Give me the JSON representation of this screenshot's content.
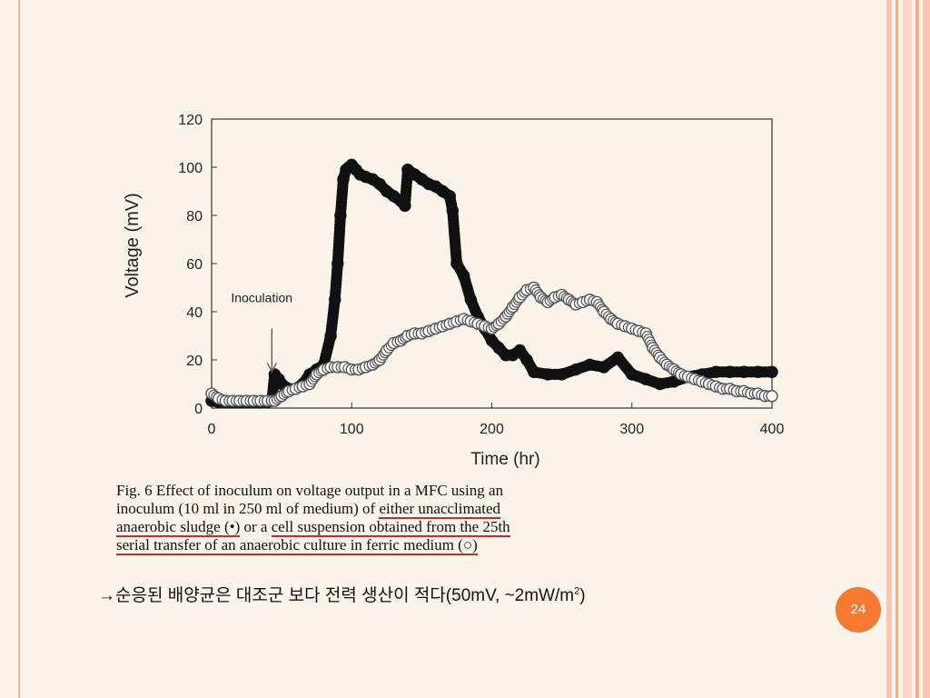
{
  "slide": {
    "page_number": "24",
    "note": "→순응된 배양균은 대조군 보다 전력 생산이 적다(50mV, ~2mW/m",
    "note_sup": "2",
    "note_tail": ")",
    "colors": {
      "background": "#fbf4ea",
      "accent": "#f47a32",
      "underline": "#c0302a",
      "rule": "#f3b8a0"
    }
  },
  "caption": {
    "line1": "Fig. 6  Effect of inoculum on voltage output in a MFC using an",
    "line2a": "inoculum (10 ml in 250 ml of medium) of ",
    "line2b": "either unacclimated",
    "line3a": "anaerobic sludge (•)",
    "line3b": " or a ",
    "line3c": "cell suspension obtained from the 25th",
    "line4": "serial transfer of an anaerobic culture in ferric medium (○)"
  },
  "chart_data": {
    "type": "scatter",
    "xlabel": "Time (hr)",
    "ylabel": "Voltage (mV)",
    "xlim": [
      0,
      400
    ],
    "ylim": [
      0,
      120
    ],
    "xticks": [
      0,
      100,
      200,
      300,
      400
    ],
    "yticks": [
      0,
      20,
      40,
      60,
      80,
      100,
      120
    ],
    "grid": false,
    "annotations": [
      {
        "text": "Inoculation",
        "x": 43,
        "y": 15
      }
    ],
    "series": [
      {
        "marker": "filled",
        "x": [
          0,
          5,
          10,
          15,
          20,
          25,
          30,
          35,
          40,
          43,
          45,
          48,
          50,
          55,
          60,
          65,
          70,
          75,
          80,
          85,
          88,
          90,
          92,
          94,
          96,
          98,
          100,
          103,
          106,
          110,
          115,
          120,
          125,
          130,
          135,
          138,
          140,
          145,
          150,
          155,
          160,
          165,
          170,
          172,
          175,
          180,
          185,
          190,
          195,
          200,
          205,
          210,
          215,
          220,
          225,
          230,
          240,
          250,
          260,
          270,
          280,
          290,
          300,
          310,
          320,
          330,
          340,
          350,
          360,
          370,
          380,
          390,
          400
        ],
        "y": [
          3,
          2.5,
          2.5,
          2.5,
          2.5,
          2.5,
          2.5,
          2.5,
          2.5,
          3,
          14,
          12,
          10,
          8,
          8,
          10,
          14,
          16,
          18,
          30,
          45,
          60,
          80,
          95,
          99,
          100,
          101,
          99,
          97,
          96,
          95,
          93,
          90,
          88,
          86,
          84,
          99,
          97,
          95,
          93,
          92,
          90,
          88,
          82,
          60,
          55,
          45,
          38,
          33,
          28,
          25,
          22,
          22,
          24,
          20,
          15,
          14,
          14,
          16,
          18,
          17,
          21,
          14,
          12,
          10,
          11,
          13,
          14,
          15,
          15,
          15,
          15,
          15
        ]
      },
      {
        "marker": "open",
        "x": [
          0,
          5,
          10,
          15,
          20,
          25,
          30,
          35,
          40,
          43,
          45,
          50,
          55,
          60,
          65,
          70,
          75,
          80,
          85,
          90,
          95,
          100,
          105,
          110,
          115,
          120,
          125,
          130,
          135,
          140,
          145,
          150,
          155,
          160,
          165,
          170,
          175,
          180,
          185,
          190,
          195,
          200,
          205,
          210,
          215,
          220,
          225,
          230,
          235,
          240,
          245,
          250,
          255,
          260,
          265,
          270,
          275,
          280,
          285,
          290,
          295,
          300,
          305,
          310,
          315,
          320,
          325,
          330,
          335,
          340,
          345,
          350,
          355,
          360,
          365,
          370,
          375,
          380,
          385,
          390,
          395,
          400
        ],
        "y": [
          6,
          4,
          3,
          3,
          3,
          3,
          3,
          3,
          3,
          3,
          3,
          5,
          7,
          8,
          9,
          10,
          14,
          16,
          17,
          17,
          17,
          16,
          16,
          17,
          18,
          20,
          24,
          27,
          28,
          30,
          31,
          31,
          32,
          33,
          34,
          35,
          36,
          37,
          36,
          35,
          34,
          33,
          35,
          38,
          42,
          46,
          49,
          50,
          46,
          44,
          46,
          47,
          45,
          43,
          44,
          45,
          44,
          40,
          37,
          35,
          34,
          33,
          32,
          31,
          25,
          21,
          18,
          16,
          14,
          13,
          12,
          11,
          10,
          9,
          8,
          8,
          7,
          7,
          6,
          6,
          5,
          5
        ]
      }
    ]
  }
}
